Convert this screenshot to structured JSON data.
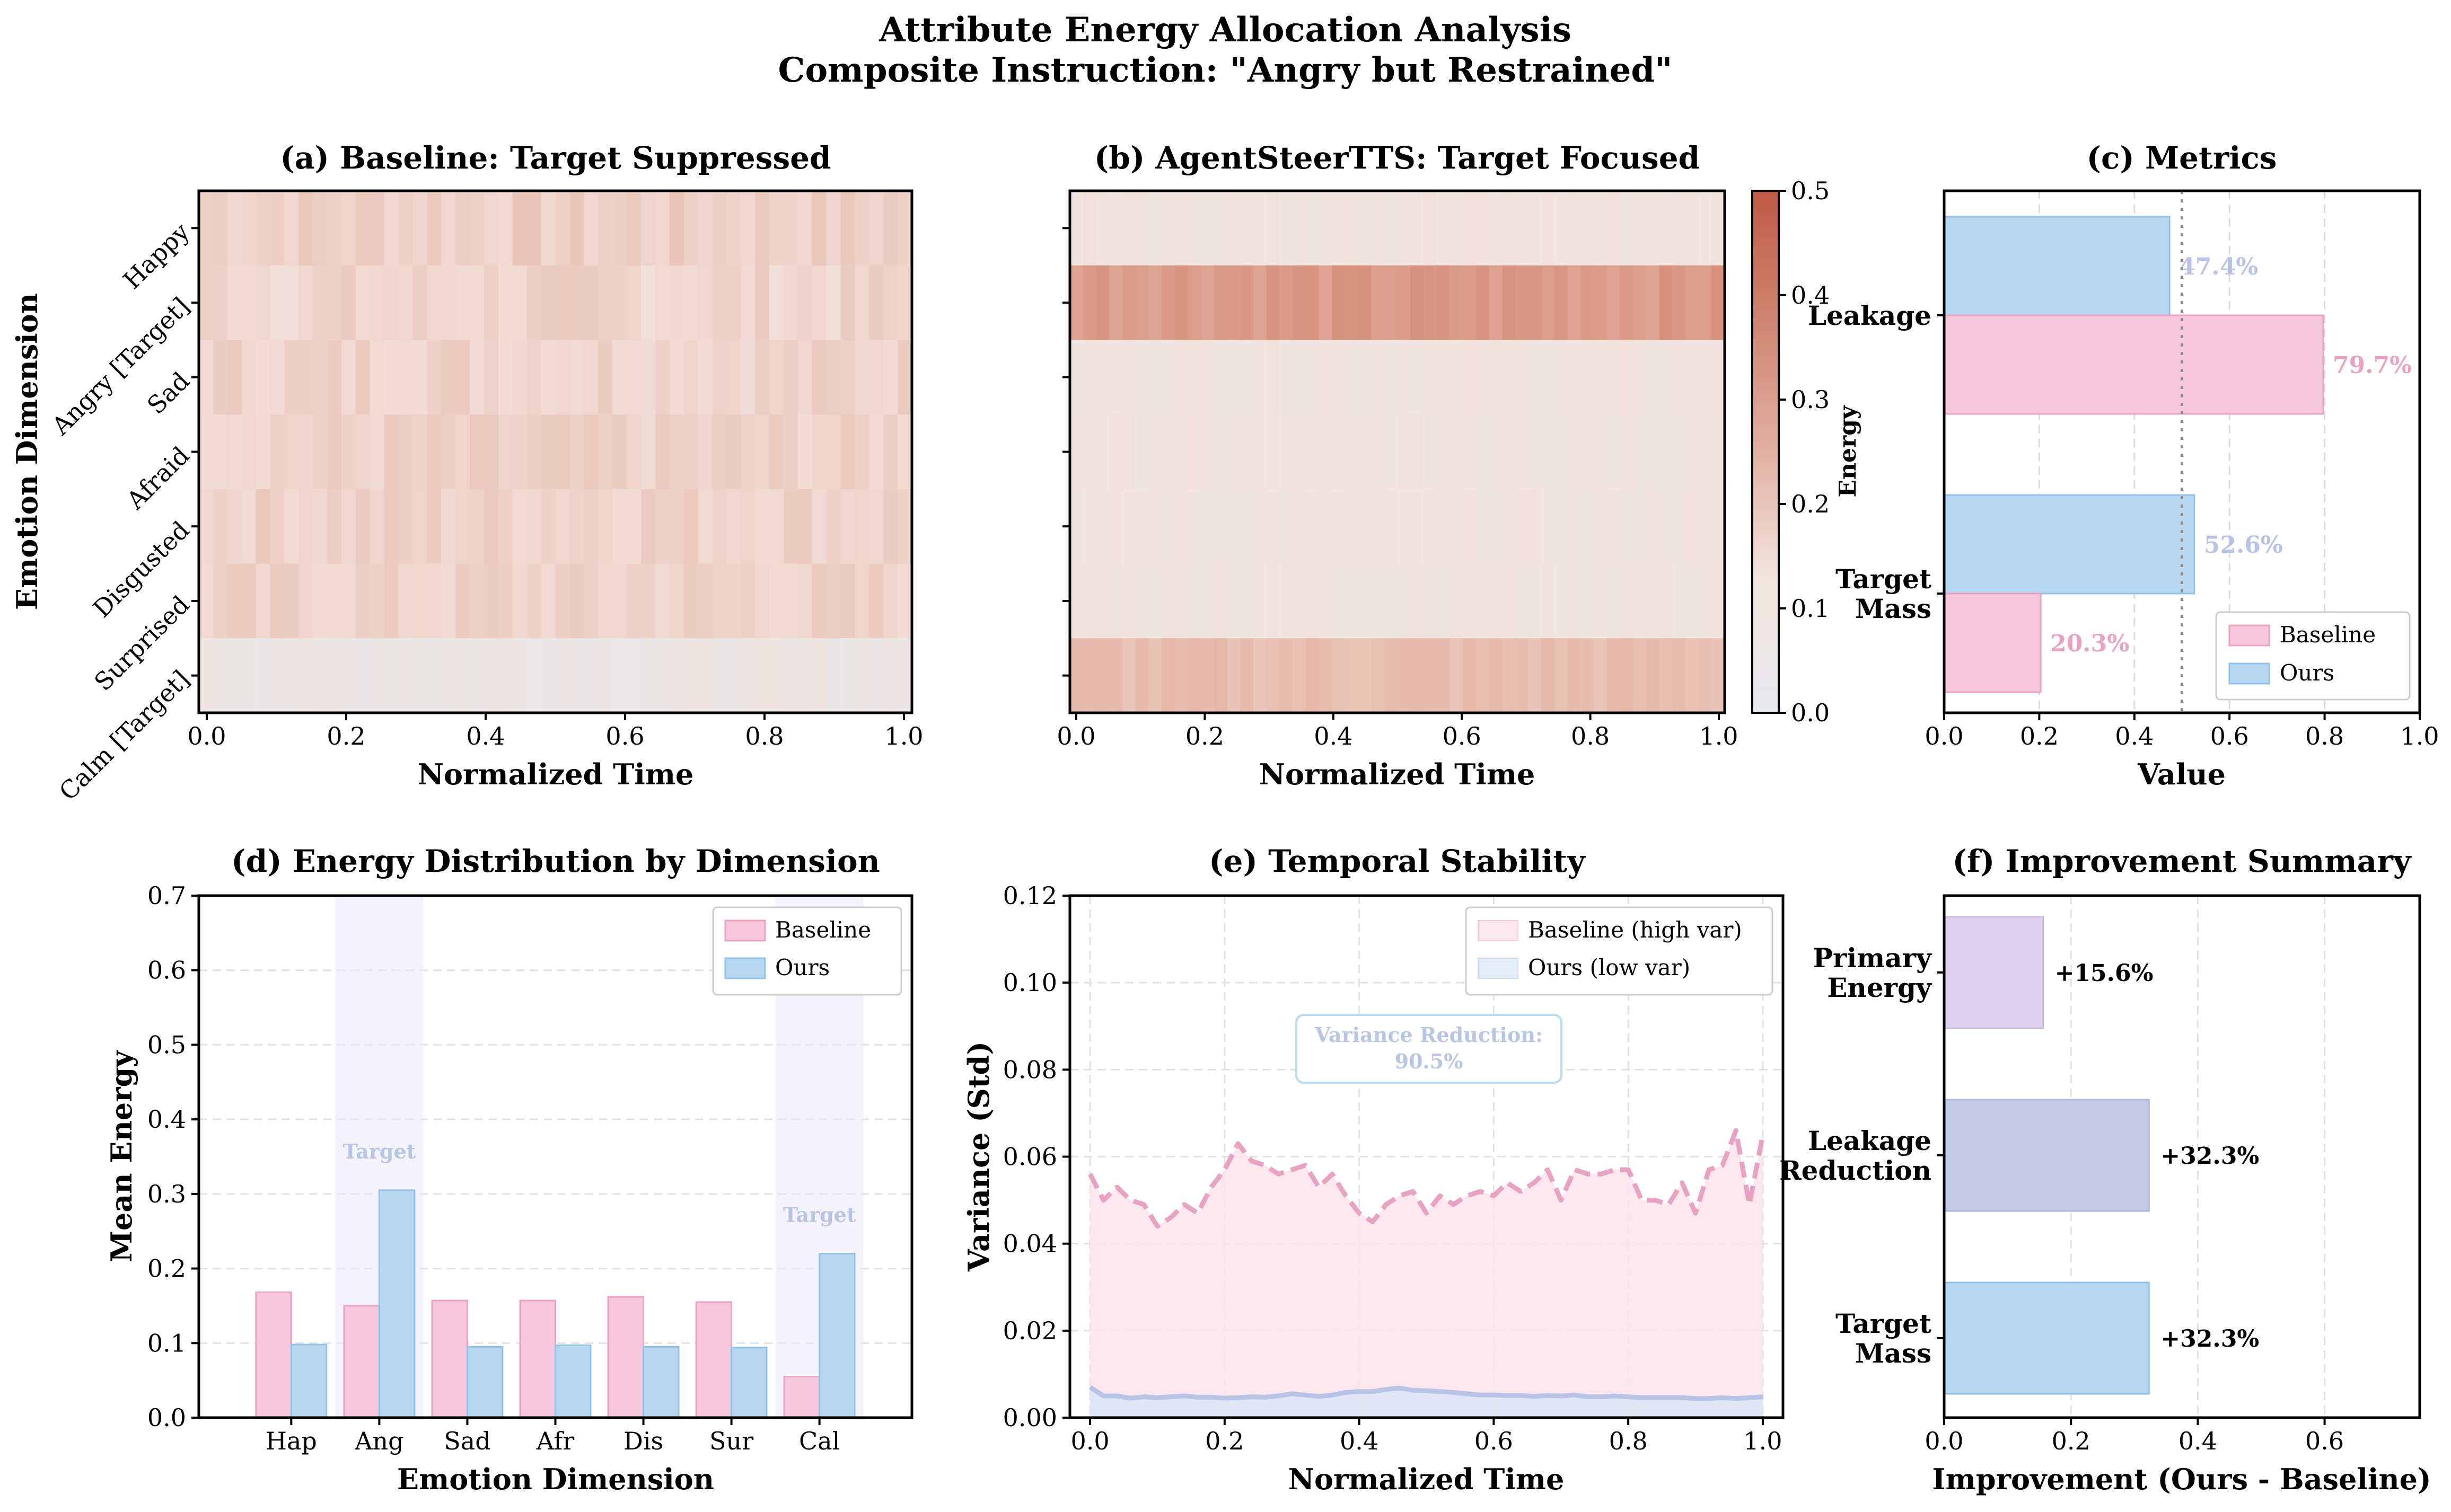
{
  "figure": {
    "title_line1": "Attribute Energy Allocation Analysis",
    "title_line2": "Composite Instruction: \"Angry but Restrained\""
  },
  "colors": {
    "baseline": "#f7c8dc",
    "baseline_edge": "#e8a2c2",
    "ours": "#b7d7f0",
    "ours_edge": "#94c1e6",
    "heat_low": "#e6e9ee",
    "heat_mid": "#f3e4df",
    "heat_high": "#c05a45",
    "target_band": "#ece9f7",
    "baseline_line": "#e8a2c2",
    "ours_line": "#b9c3e6",
    "annotation": "#b8c6e3",
    "primary_energy_bar": "#ddd3ec",
    "leakage_reduction_bar": "#c5cbe6"
  },
  "chart_data": [
    {
      "id": "a",
      "type": "heatmap",
      "title": "(a) Baseline: Target Suppressed",
      "xlabel": "Normalized Time",
      "ylabel": "Emotion Dimension",
      "rows": [
        "Happy",
        "Angry [Target]",
        "Sad",
        "Afraid",
        "Disgusted",
        "Surprised",
        "Calm [Target]"
      ],
      "x_ticks": [
        "0.0",
        "0.2",
        "0.4",
        "0.6",
        "0.8",
        "1.0"
      ],
      "xlim": [
        0,
        1
      ],
      "columns": 50,
      "row_mean_energy": [
        0.168,
        0.15,
        0.157,
        0.157,
        0.162,
        0.155,
        0.055
      ],
      "value_range": [
        0.0,
        0.5
      ]
    },
    {
      "id": "b",
      "type": "heatmap",
      "title": "(b) AgentSteerTTS: Target Focused",
      "xlabel": "Normalized Time",
      "rows": [
        "Happy",
        "Angry [Target]",
        "Sad",
        "Afraid",
        "Disgusted",
        "Surprised",
        "Calm [Target]"
      ],
      "x_ticks": [
        "0.0",
        "0.2",
        "0.4",
        "0.6",
        "0.8",
        "1.0"
      ],
      "xlim": [
        0,
        1
      ],
      "columns": 50,
      "row_mean_energy": [
        0.1,
        0.31,
        0.095,
        0.097,
        0.095,
        0.094,
        0.22
      ],
      "colorbar_label": "Energy",
      "colorbar_ticks": [
        "0.0",
        "0.1",
        "0.2",
        "0.3",
        "0.4",
        "0.5"
      ],
      "value_range": [
        0.0,
        0.5
      ]
    },
    {
      "id": "c",
      "type": "bar",
      "orientation": "horizontal",
      "title": "(c) Metrics",
      "xlabel": "Value",
      "categories": [
        "Leakage",
        "Target Mass"
      ],
      "category_lines": [
        [
          "Leakage"
        ],
        [
          "Target",
          "Mass"
        ]
      ],
      "series": [
        {
          "name": "Baseline",
          "values": [
            0.797,
            0.203
          ],
          "labels": [
            "79.7%",
            "20.3%"
          ]
        },
        {
          "name": "Ours",
          "values": [
            0.474,
            0.526
          ],
          "labels": [
            "47.4%",
            "52.6%"
          ]
        }
      ],
      "xlim": [
        0,
        1
      ],
      "x_ticks": [
        "0.0",
        "0.2",
        "0.4",
        "0.6",
        "0.8",
        "1.0"
      ],
      "reference_line": 0.5,
      "legend": "lower-right",
      "grid": true
    },
    {
      "id": "d",
      "type": "bar",
      "title": "(d) Energy Distribution by Dimension",
      "xlabel": "Emotion Dimension",
      "ylabel": "Mean Energy",
      "categories": [
        "Hap",
        "Ang",
        "Sad",
        "Afr",
        "Dis",
        "Sur",
        "Cal"
      ],
      "series": [
        {
          "name": "Baseline",
          "values": [
            0.168,
            0.15,
            0.157,
            0.157,
            0.162,
            0.155,
            0.055
          ]
        },
        {
          "name": "Ours",
          "values": [
            0.098,
            0.305,
            0.095,
            0.097,
            0.095,
            0.094,
            0.22
          ]
        }
      ],
      "ylim": [
        0,
        0.7
      ],
      "y_ticks": [
        "0.0",
        "0.1",
        "0.2",
        "0.3",
        "0.4",
        "0.5",
        "0.6",
        "0.7"
      ],
      "target_categories": [
        "Ang",
        "Cal"
      ],
      "target_label": "Target",
      "legend": "top-right",
      "grid": true
    },
    {
      "id": "e",
      "type": "area",
      "title": "(e) Temporal Stability",
      "xlabel": "Normalized Time",
      "ylabel": "Variance (Std)",
      "x": [
        0.0,
        0.02,
        0.04,
        0.06,
        0.08,
        0.1,
        0.12,
        0.14,
        0.16,
        0.18,
        0.2,
        0.22,
        0.24,
        0.26,
        0.28,
        0.3,
        0.32,
        0.34,
        0.36,
        0.38,
        0.4,
        0.42,
        0.44,
        0.46,
        0.48,
        0.5,
        0.52,
        0.54,
        0.56,
        0.58,
        0.6,
        0.62,
        0.64,
        0.66,
        0.68,
        0.7,
        0.72,
        0.74,
        0.76,
        0.78,
        0.8,
        0.82,
        0.84,
        0.86,
        0.88,
        0.9,
        0.92,
        0.94,
        0.96,
        0.98,
        1.0
      ],
      "series": [
        {
          "name": "Baseline (high var)",
          "values": [
            0.056,
            0.05,
            0.053,
            0.05,
            0.049,
            0.044,
            0.046,
            0.049,
            0.047,
            0.053,
            0.057,
            0.063,
            0.059,
            0.058,
            0.056,
            0.057,
            0.058,
            0.053,
            0.056,
            0.051,
            0.047,
            0.045,
            0.049,
            0.051,
            0.052,
            0.047,
            0.051,
            0.049,
            0.051,
            0.052,
            0.051,
            0.054,
            0.052,
            0.054,
            0.057,
            0.05,
            0.057,
            0.056,
            0.056,
            0.057,
            0.057,
            0.05,
            0.05,
            0.049,
            0.054,
            0.047,
            0.057,
            0.058,
            0.066,
            0.049,
            0.065
          ]
        },
        {
          "name": "Ours (low var)",
          "values": [
            0.007,
            0.005,
            0.005,
            0.0045,
            0.0048,
            0.0046,
            0.0048,
            0.005,
            0.0047,
            0.0047,
            0.0045,
            0.0046,
            0.0048,
            0.0047,
            0.005,
            0.0055,
            0.0052,
            0.0049,
            0.0052,
            0.0058,
            0.006,
            0.006,
            0.0065,
            0.0068,
            0.0063,
            0.0062,
            0.006,
            0.0058,
            0.0055,
            0.0052,
            0.0052,
            0.0051,
            0.0051,
            0.0049,
            0.0051,
            0.005,
            0.0052,
            0.0048,
            0.0048,
            0.005,
            0.0048,
            0.0046,
            0.0046,
            0.0046,
            0.0046,
            0.0044,
            0.0044,
            0.0046,
            0.0044,
            0.0046,
            0.0048
          ]
        }
      ],
      "xlim": [
        -0.03,
        1.03
      ],
      "ylim": [
        0,
        0.12
      ],
      "x_ticks": [
        "0.0",
        "0.2",
        "0.4",
        "0.6",
        "0.8",
        "1.0"
      ],
      "y_ticks": [
        "0.00",
        "0.02",
        "0.04",
        "0.06",
        "0.08",
        "0.10",
        "0.12"
      ],
      "annotation_line1": "Variance Reduction:",
      "annotation_line2": "90.5%",
      "legend": "top-right",
      "grid": true
    },
    {
      "id": "f",
      "type": "bar",
      "orientation": "horizontal",
      "title": "(f) Improvement Summary",
      "xlabel": "Improvement (Ours - Baseline)",
      "categories": [
        "Primary Energy",
        "Leakage Reduction",
        "Target Mass"
      ],
      "category_lines": [
        [
          "Primary",
          "Energy"
        ],
        [
          "Leakage",
          "Reduction"
        ],
        [
          "Target",
          "Mass"
        ]
      ],
      "values": [
        0.156,
        0.323,
        0.323
      ],
      "labels": [
        "+15.6%",
        "+32.3%",
        "+32.3%"
      ],
      "xlim": [
        0,
        0.75
      ],
      "x_ticks": [
        "0.0",
        "0.2",
        "0.4",
        "0.6"
      ],
      "grid": true
    }
  ]
}
